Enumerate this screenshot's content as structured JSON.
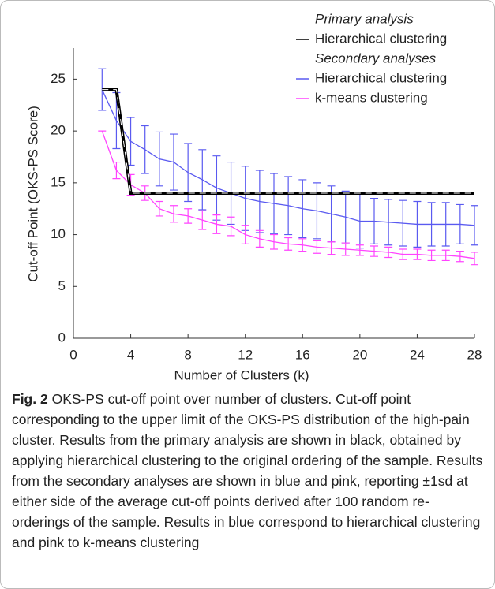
{
  "chart_data": {
    "type": "line",
    "xlabel": "Number of Clusters (k)",
    "ylabel": "Cut-off Point (OKS-PS Score)",
    "x": [
      2,
      3,
      4,
      5,
      6,
      7,
      8,
      9,
      10,
      11,
      12,
      13,
      14,
      15,
      16,
      17,
      18,
      19,
      20,
      21,
      22,
      23,
      24,
      25,
      26,
      27,
      28
    ],
    "xlim": [
      0,
      28
    ],
    "xticks": [
      0,
      4,
      8,
      12,
      16,
      20,
      24,
      28
    ],
    "ylim": [
      0,
      28
    ],
    "yticks": [
      0,
      5,
      10,
      15,
      20,
      25
    ],
    "legend_headings": [
      "Primary analysis",
      "Secondary analyses"
    ],
    "series": [
      {
        "name": "Hierarchical clustering",
        "color": "#000000",
        "values": [
          24,
          24,
          14,
          14,
          14,
          14,
          14,
          14,
          14,
          14,
          14,
          14,
          14,
          14,
          14,
          14,
          14,
          14,
          14,
          14,
          14,
          14,
          14,
          14,
          14,
          14,
          14
        ]
      },
      {
        "name": "Hierarchical clustering",
        "color": "#5a5af0",
        "values": [
          24,
          21,
          19,
          18.2,
          17.3,
          17,
          16,
          15.3,
          14.5,
          14,
          13.5,
          13.2,
          13,
          12.8,
          12.5,
          12.3,
          12,
          11.7,
          11.3,
          11.3,
          11.2,
          11.1,
          11,
          11,
          11,
          11,
          10.9
        ],
        "errors": [
          2,
          2.7,
          2.3,
          2.3,
          2.6,
          2.7,
          2.8,
          2.9,
          3.1,
          3,
          3.1,
          3,
          2.9,
          2.8,
          2.8,
          2.7,
          2.7,
          2.5,
          2.6,
          2.2,
          2.2,
          2.2,
          2.2,
          2.1,
          2.1,
          1.9,
          1.9
        ]
      },
      {
        "name": "k-means clustering",
        "color": "#ff44ff",
        "values": [
          20,
          16.2,
          14.8,
          14,
          12.5,
          12,
          11.8,
          11.4,
          11,
          10.8,
          10,
          9.6,
          9.3,
          9.1,
          9,
          8.8,
          8.7,
          8.6,
          8.5,
          8.4,
          8.3,
          8.1,
          8.1,
          8,
          8,
          7.9,
          7.7
        ],
        "errors": [
          0,
          0.8,
          1,
          0.7,
          0.7,
          0.8,
          0.7,
          0.9,
          0.9,
          0.9,
          0.9,
          0.8,
          0.7,
          0.6,
          0.6,
          0.6,
          0.6,
          0.6,
          0.5,
          0.5,
          0.5,
          0.5,
          0.5,
          0.5,
          0.5,
          0.5,
          0.6
        ]
      }
    ]
  },
  "caption": {
    "label": "Fig. 2",
    "text": "OKS-PS cut-off point over number of clusters. Cut-off point corresponding to the upper limit of the OKS-PS distribution of the high-pain cluster. Results from the primary analysis are shown in black, obtained by applying hierarchical clustering to the original ordering of the sample. Results from the secondary analyses are shown in blue and pink, reporting ±1sd at either side of the average cut-off points derived after 100 random re-orderings of the sample. Results in blue correspond to hierarchical clustering and pink to k-means clustering"
  }
}
